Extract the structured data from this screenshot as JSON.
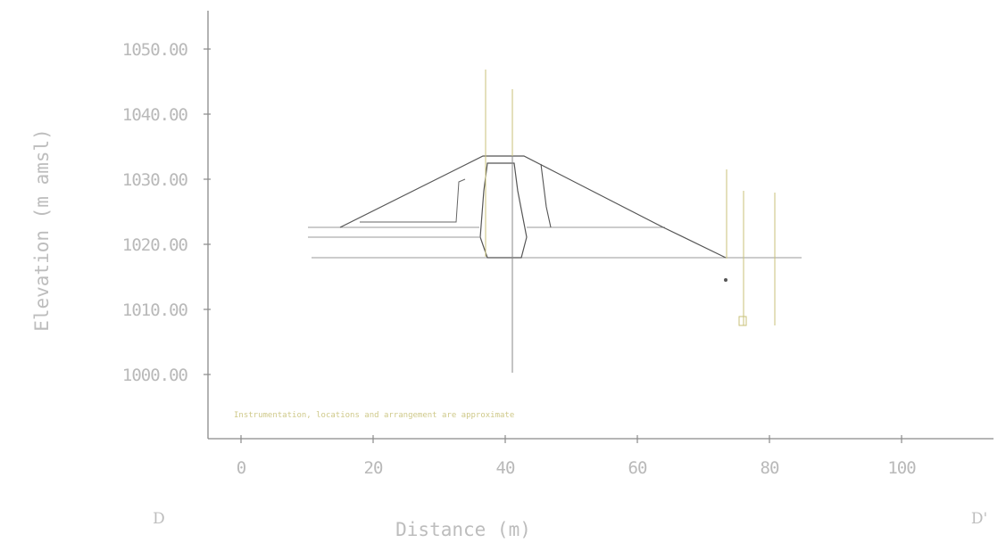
{
  "axes": {
    "ylabel": "Elevation (m amsl)",
    "xlabel": "Distance (m)",
    "y_ticks": [
      "1050.00",
      "1040.00",
      "1030.00",
      "1020.00",
      "1010.00",
      "1000.00"
    ],
    "x_ticks": [
      "0",
      "20",
      "40",
      "60",
      "80",
      "100"
    ],
    "section_start": "D",
    "section_end": "D'"
  },
  "legend_note": "Instrumentation, locations and arrangement are approximate",
  "colors": {
    "axis": "#8a8a8a",
    "dam_outline": "#555555",
    "foundation": "#9a9a9a",
    "instrument": "#c9c27a",
    "labels": "#b9b9b9"
  },
  "chart_data": {
    "type": "cross-section",
    "xlabel": "Distance (m)",
    "ylabel": "Elevation (m amsl)",
    "xlim": [
      -3,
      115
    ],
    "ylim": [
      991,
      1055
    ],
    "x_ticks": [
      0,
      20,
      40,
      60,
      80,
      100
    ],
    "y_ticks": [
      1000,
      1010,
      1020,
      1030,
      1040,
      1050
    ],
    "section": "D - D'",
    "dam_outline": [
      [
        15,
        1022.5
      ],
      [
        37,
        1033.5
      ],
      [
        43.5,
        1033.5
      ],
      [
        65,
        1022.5
      ],
      [
        74,
        1017.5
      ]
    ],
    "core": [
      [
        36.5,
        1021
      ],
      [
        38.5,
        1032.5
      ],
      [
        41.5,
        1032.5
      ],
      [
        43,
        1021
      ],
      [
        42,
        1017.5
      ],
      [
        37.5,
        1017.5
      ],
      [
        36.5,
        1021
      ]
    ],
    "ground_level_m": 1017.5,
    "instrument_columns_x_m": [
      37.5,
      41.5,
      74,
      77,
      82
    ]
  }
}
